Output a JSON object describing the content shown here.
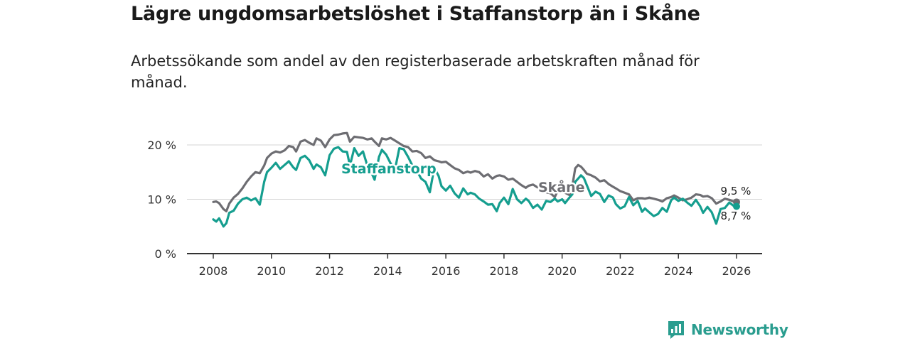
{
  "header": {
    "title": "Lägre ungdomsarbetslöshet i Staffanstorp än i Skåne",
    "subtitle": "Arbetssökande som andel av den registerbaserade arbetskraften månad för månad."
  },
  "brand": {
    "name": "Newsworthy",
    "icon": "bar-chart-speech-icon"
  },
  "chart_data": {
    "type": "line",
    "title": "Lägre ungdomsarbetslöshet i Staffanstorp än i Skåne",
    "subtitle": "Arbetssökande som andel av den registerbaserade arbetskraften månad för månad.",
    "xlabel": "",
    "ylabel": "",
    "xlim": [
      2007.6,
      2026.6
    ],
    "ylim": [
      0,
      22
    ],
    "x_ticks": [
      2008,
      2010,
      2012,
      2014,
      2016,
      2018,
      2020,
      2022,
      2024,
      2026
    ],
    "x_tick_labels": [
      "2008",
      "2010",
      "2012",
      "2014",
      "2016",
      "2018",
      "2020",
      "2022",
      "2024",
      "2026"
    ],
    "y_ticks": [
      0,
      10,
      20
    ],
    "y_tick_labels": [
      "0 %",
      "10 %",
      "20 %"
    ],
    "grid": "horizontal",
    "series": [
      {
        "name": "Skåne",
        "color": "#6d6d72",
        "end_label": "9,5 %",
        "points": [
          [
            2008.0,
            9.5
          ],
          [
            2008.1,
            9.6
          ],
          [
            2008.2,
            9.3
          ],
          [
            2008.35,
            8.2
          ],
          [
            2008.45,
            7.8
          ],
          [
            2008.55,
            9.2
          ],
          [
            2008.7,
            10.3
          ],
          [
            2008.85,
            11.0
          ],
          [
            2009.0,
            12.0
          ],
          [
            2009.15,
            13.2
          ],
          [
            2009.3,
            14.2
          ],
          [
            2009.45,
            15.0
          ],
          [
            2009.6,
            14.8
          ],
          [
            2009.75,
            16.2
          ],
          [
            2009.85,
            17.6
          ],
          [
            2010.0,
            18.4
          ],
          [
            2010.15,
            18.8
          ],
          [
            2010.3,
            18.6
          ],
          [
            2010.45,
            19.0
          ],
          [
            2010.6,
            19.8
          ],
          [
            2010.75,
            19.6
          ],
          [
            2010.85,
            18.8
          ],
          [
            2011.0,
            20.6
          ],
          [
            2011.15,
            20.9
          ],
          [
            2011.3,
            20.4
          ],
          [
            2011.45,
            20.0
          ],
          [
            2011.55,
            21.2
          ],
          [
            2011.7,
            20.8
          ],
          [
            2011.85,
            19.6
          ],
          [
            2012.0,
            21.0
          ],
          [
            2012.15,
            21.8
          ],
          [
            2012.3,
            21.9
          ],
          [
            2012.45,
            22.1
          ],
          [
            2012.6,
            22.2
          ],
          [
            2012.7,
            20.6
          ],
          [
            2012.85,
            21.5
          ],
          [
            2013.0,
            21.4
          ],
          [
            2013.15,
            21.3
          ],
          [
            2013.3,
            21.0
          ],
          [
            2013.45,
            21.2
          ],
          [
            2013.55,
            20.6
          ],
          [
            2013.7,
            19.8
          ],
          [
            2013.8,
            21.2
          ],
          [
            2013.95,
            21.0
          ],
          [
            2014.1,
            21.3
          ],
          [
            2014.25,
            20.8
          ],
          [
            2014.4,
            20.3
          ],
          [
            2014.55,
            19.8
          ],
          [
            2014.7,
            19.6
          ],
          [
            2014.85,
            18.8
          ],
          [
            2015.0,
            18.9
          ],
          [
            2015.15,
            18.5
          ],
          [
            2015.3,
            17.6
          ],
          [
            2015.45,
            17.9
          ],
          [
            2015.6,
            17.2
          ],
          [
            2015.75,
            17.0
          ],
          [
            2015.85,
            16.8
          ],
          [
            2016.0,
            16.9
          ],
          [
            2016.15,
            16.3
          ],
          [
            2016.3,
            15.7
          ],
          [
            2016.45,
            15.4
          ],
          [
            2016.6,
            14.8
          ],
          [
            2016.75,
            15.1
          ],
          [
            2016.85,
            14.9
          ],
          [
            2017.0,
            15.2
          ],
          [
            2017.15,
            15.0
          ],
          [
            2017.3,
            14.2
          ],
          [
            2017.45,
            14.6
          ],
          [
            2017.6,
            13.8
          ],
          [
            2017.75,
            14.3
          ],
          [
            2017.85,
            14.4
          ],
          [
            2018.0,
            14.2
          ],
          [
            2018.15,
            13.6
          ],
          [
            2018.3,
            13.8
          ],
          [
            2018.45,
            13.2
          ],
          [
            2018.6,
            12.6
          ],
          [
            2018.75,
            12.1
          ],
          [
            2018.85,
            12.5
          ],
          [
            2019.0,
            12.7
          ],
          [
            2019.15,
            12.2
          ],
          [
            2019.3,
            11.9
          ],
          [
            2019.45,
            11.3
          ],
          [
            2019.6,
            11.1
          ],
          [
            2019.75,
            10.4
          ],
          [
            2019.85,
            11.6
          ],
          [
            2020.0,
            11.4
          ],
          [
            2020.1,
            11.2
          ],
          [
            2020.25,
            10.8
          ],
          [
            2020.35,
            12.4
          ],
          [
            2020.45,
            15.7
          ],
          [
            2020.55,
            16.3
          ],
          [
            2020.65,
            16.0
          ],
          [
            2020.75,
            15.4
          ],
          [
            2020.85,
            14.7
          ],
          [
            2021.0,
            14.4
          ],
          [
            2021.15,
            14.0
          ],
          [
            2021.3,
            13.3
          ],
          [
            2021.45,
            13.5
          ],
          [
            2021.6,
            12.8
          ],
          [
            2021.75,
            12.3
          ],
          [
            2021.85,
            12.0
          ],
          [
            2022.0,
            11.5
          ],
          [
            2022.15,
            11.2
          ],
          [
            2022.3,
            10.9
          ],
          [
            2022.45,
            9.8
          ],
          [
            2022.6,
            10.2
          ],
          [
            2022.75,
            10.2
          ],
          [
            2022.85,
            10.1
          ],
          [
            2023.0,
            10.3
          ],
          [
            2023.15,
            10.1
          ],
          [
            2023.3,
            9.9
          ],
          [
            2023.45,
            9.6
          ],
          [
            2023.6,
            10.2
          ],
          [
            2023.75,
            10.4
          ],
          [
            2023.85,
            10.7
          ],
          [
            2024.0,
            10.3
          ],
          [
            2024.15,
            9.8
          ],
          [
            2024.3,
            10.0
          ],
          [
            2024.45,
            10.3
          ],
          [
            2024.6,
            10.9
          ],
          [
            2024.75,
            10.8
          ],
          [
            2024.85,
            10.5
          ],
          [
            2025.0,
            10.6
          ],
          [
            2025.15,
            10.2
          ],
          [
            2025.3,
            9.2
          ],
          [
            2025.45,
            9.6
          ],
          [
            2025.6,
            10.1
          ],
          [
            2025.75,
            9.9
          ],
          [
            2025.9,
            9.6
          ],
          [
            2026.0,
            9.5
          ]
        ]
      },
      {
        "name": "Staffanstorp",
        "color": "#159e8f",
        "end_label": "8,7 %",
        "points": [
          [
            2008.0,
            6.3
          ],
          [
            2008.1,
            5.9
          ],
          [
            2008.2,
            6.5
          ],
          [
            2008.35,
            5.0
          ],
          [
            2008.45,
            5.6
          ],
          [
            2008.55,
            7.5
          ],
          [
            2008.7,
            7.9
          ],
          [
            2008.85,
            9.2
          ],
          [
            2009.0,
            10.0
          ],
          [
            2009.15,
            10.3
          ],
          [
            2009.3,
            9.8
          ],
          [
            2009.45,
            10.2
          ],
          [
            2009.6,
            9.0
          ],
          [
            2009.75,
            13.2
          ],
          [
            2009.85,
            15.0
          ],
          [
            2010.0,
            15.8
          ],
          [
            2010.15,
            16.7
          ],
          [
            2010.3,
            15.6
          ],
          [
            2010.45,
            16.3
          ],
          [
            2010.6,
            17.0
          ],
          [
            2010.75,
            15.9
          ],
          [
            2010.85,
            15.4
          ],
          [
            2011.0,
            17.6
          ],
          [
            2011.15,
            18.0
          ],
          [
            2011.3,
            17.2
          ],
          [
            2011.45,
            15.6
          ],
          [
            2011.55,
            16.4
          ],
          [
            2011.7,
            15.9
          ],
          [
            2011.85,
            14.4
          ],
          [
            2012.0,
            18.1
          ],
          [
            2012.15,
            19.3
          ],
          [
            2012.3,
            19.6
          ],
          [
            2012.45,
            18.8
          ],
          [
            2012.6,
            18.7
          ],
          [
            2012.7,
            16.2
          ],
          [
            2012.85,
            19.4
          ],
          [
            2013.0,
            18.0
          ],
          [
            2013.15,
            18.8
          ],
          [
            2013.3,
            16.2
          ],
          [
            2013.45,
            14.8
          ],
          [
            2013.55,
            13.6
          ],
          [
            2013.7,
            17.8
          ],
          [
            2013.8,
            19.1
          ],
          [
            2013.95,
            18.2
          ],
          [
            2014.1,
            16.6
          ],
          [
            2014.25,
            15.5
          ],
          [
            2014.4,
            19.4
          ],
          [
            2014.55,
            19.2
          ],
          [
            2014.7,
            17.8
          ],
          [
            2014.85,
            16.2
          ],
          [
            2015.0,
            15.3
          ],
          [
            2015.15,
            13.8
          ],
          [
            2015.3,
            13.2
          ],
          [
            2015.45,
            11.3
          ],
          [
            2015.6,
            15.8
          ],
          [
            2015.75,
            14.3
          ],
          [
            2015.85,
            12.4
          ],
          [
            2016.0,
            11.6
          ],
          [
            2016.15,
            12.5
          ],
          [
            2016.3,
            11.1
          ],
          [
            2016.45,
            10.3
          ],
          [
            2016.6,
            12.0
          ],
          [
            2016.75,
            10.9
          ],
          [
            2016.85,
            11.2
          ],
          [
            2017.0,
            10.9
          ],
          [
            2017.15,
            10.1
          ],
          [
            2017.3,
            9.6
          ],
          [
            2017.45,
            9.0
          ],
          [
            2017.6,
            9.1
          ],
          [
            2017.75,
            7.8
          ],
          [
            2017.85,
            9.3
          ],
          [
            2018.0,
            10.3
          ],
          [
            2018.15,
            9.1
          ],
          [
            2018.3,
            11.9
          ],
          [
            2018.45,
            10.0
          ],
          [
            2018.6,
            9.3
          ],
          [
            2018.75,
            10.1
          ],
          [
            2018.85,
            9.7
          ],
          [
            2019.0,
            8.4
          ],
          [
            2019.15,
            9.0
          ],
          [
            2019.3,
            8.1
          ],
          [
            2019.45,
            9.7
          ],
          [
            2019.6,
            9.5
          ],
          [
            2019.75,
            10.1
          ],
          [
            2019.85,
            9.6
          ],
          [
            2020.0,
            10.0
          ],
          [
            2020.1,
            9.3
          ],
          [
            2020.25,
            10.3
          ],
          [
            2020.35,
            10.9
          ],
          [
            2020.45,
            13.2
          ],
          [
            2020.55,
            13.8
          ],
          [
            2020.65,
            14.4
          ],
          [
            2020.75,
            13.9
          ],
          [
            2020.85,
            12.6
          ],
          [
            2021.0,
            10.6
          ],
          [
            2021.15,
            11.4
          ],
          [
            2021.3,
            11.0
          ],
          [
            2021.45,
            9.5
          ],
          [
            2021.6,
            10.7
          ],
          [
            2021.75,
            10.3
          ],
          [
            2021.85,
            9.1
          ],
          [
            2022.0,
            8.3
          ],
          [
            2022.15,
            8.7
          ],
          [
            2022.3,
            10.4
          ],
          [
            2022.45,
            8.9
          ],
          [
            2022.6,
            9.7
          ],
          [
            2022.75,
            7.7
          ],
          [
            2022.85,
            8.3
          ],
          [
            2023.0,
            7.6
          ],
          [
            2023.15,
            6.9
          ],
          [
            2023.3,
            7.3
          ],
          [
            2023.45,
            8.4
          ],
          [
            2023.6,
            7.7
          ],
          [
            2023.75,
            9.8
          ],
          [
            2023.85,
            10.3
          ],
          [
            2024.0,
            9.7
          ],
          [
            2024.15,
            10.1
          ],
          [
            2024.3,
            9.4
          ],
          [
            2024.45,
            8.8
          ],
          [
            2024.6,
            9.9
          ],
          [
            2024.75,
            8.7
          ],
          [
            2024.85,
            7.5
          ],
          [
            2025.0,
            8.6
          ],
          [
            2025.15,
            7.6
          ],
          [
            2025.3,
            5.5
          ],
          [
            2025.45,
            8.2
          ],
          [
            2025.6,
            8.4
          ],
          [
            2025.75,
            9.4
          ],
          [
            2025.9,
            8.8
          ],
          [
            2026.0,
            8.7
          ]
        ]
      }
    ]
  }
}
